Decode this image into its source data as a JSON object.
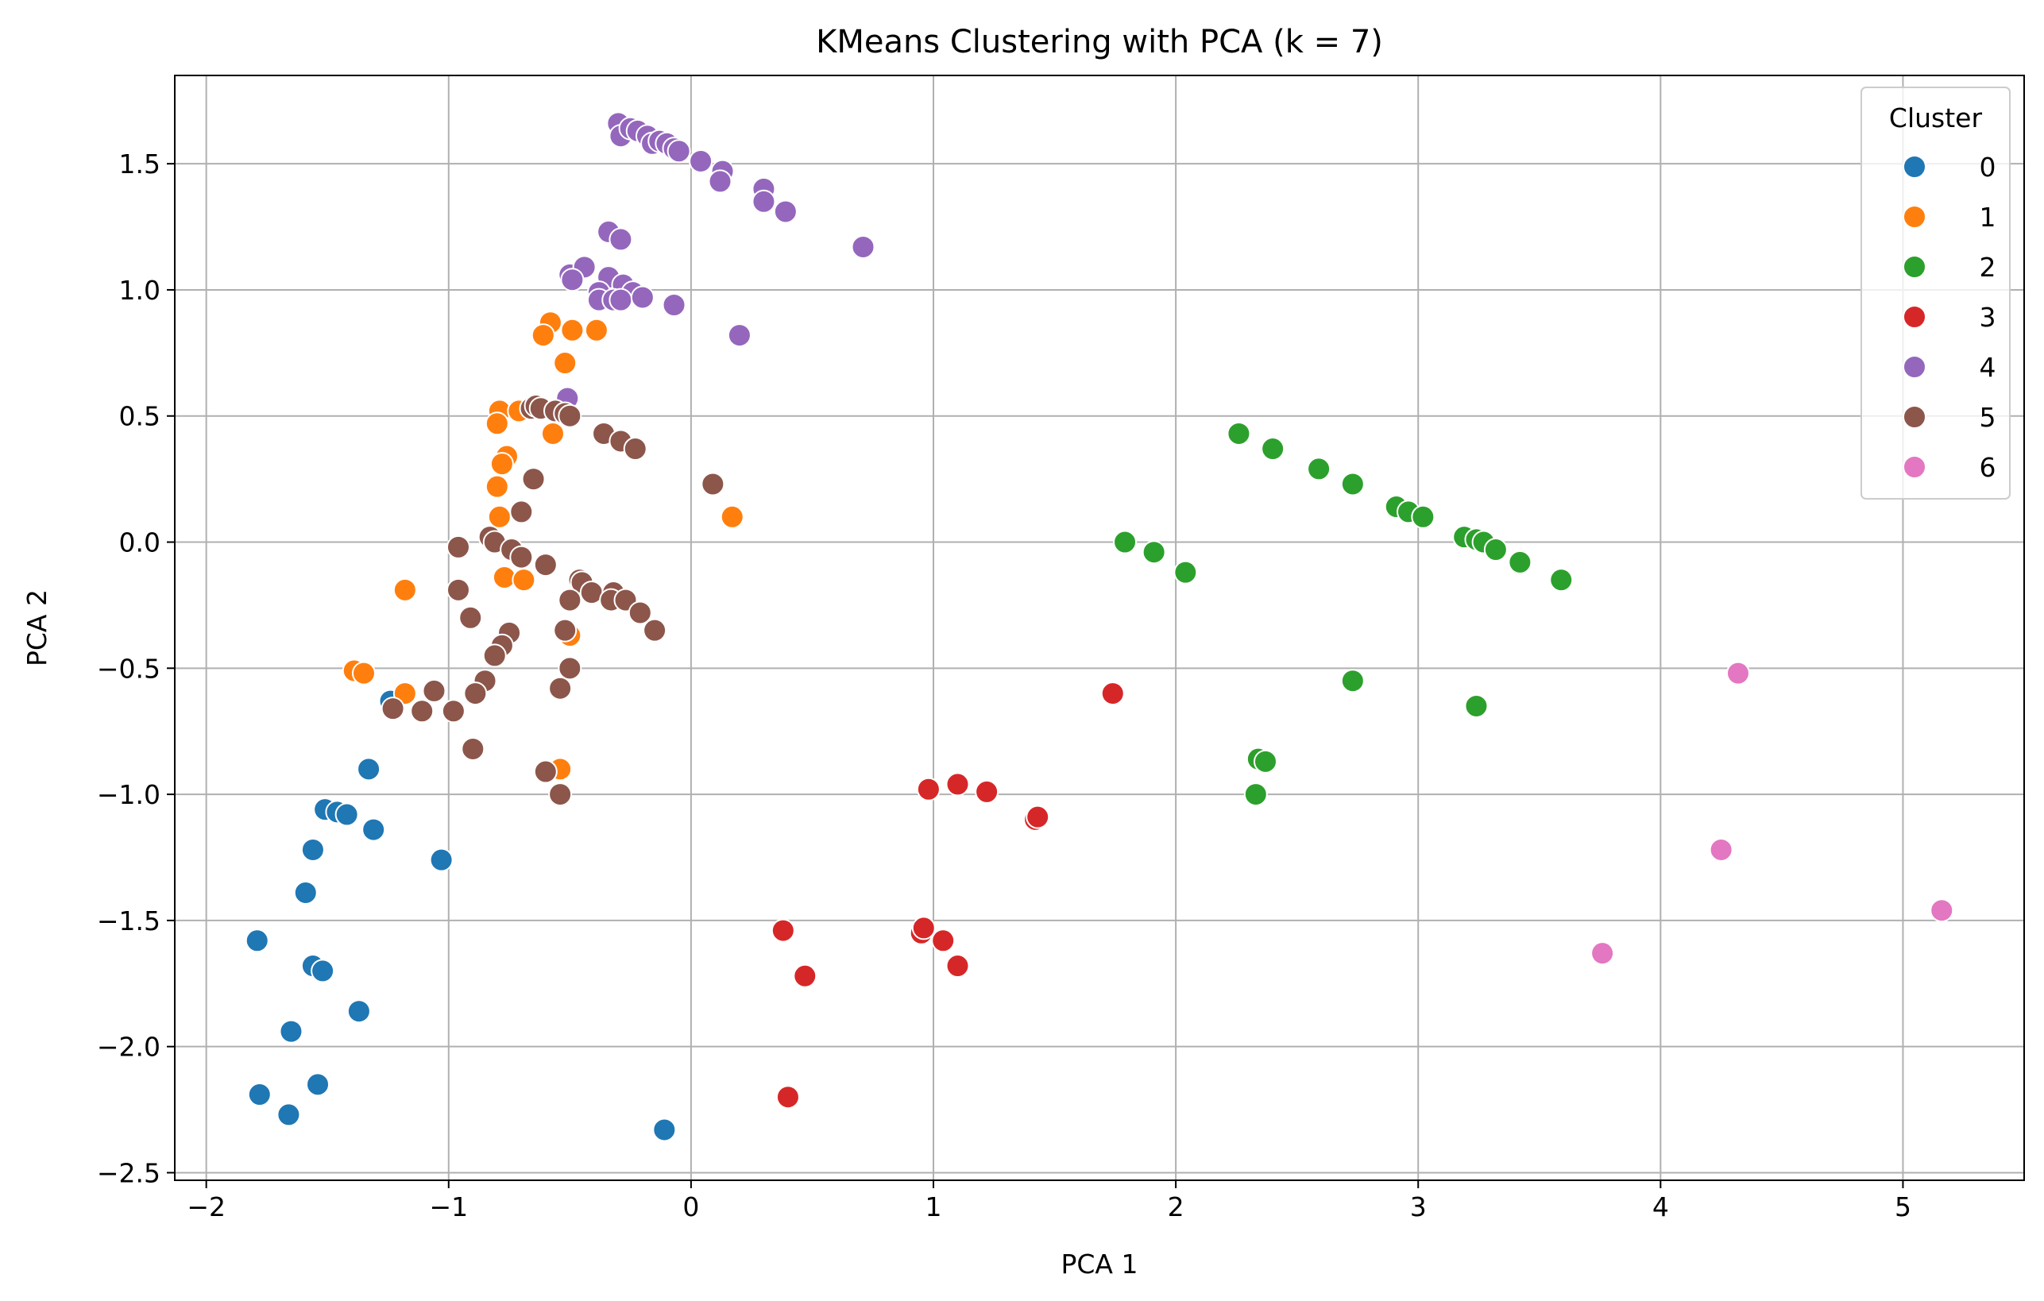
{
  "chart_data": {
    "type": "scatter",
    "title": "KMeans Clustering with PCA (k = 7)",
    "xlabel": "PCA 1",
    "ylabel": "PCA 2",
    "xlim": [
      -2.13,
      5.5
    ],
    "ylim": [
      -2.53,
      1.85
    ],
    "xticks": [
      -2,
      -1,
      0,
      1,
      2,
      3,
      4,
      5
    ],
    "xtick_labels": [
      "−2",
      "−1",
      "0",
      "1",
      "2",
      "3",
      "4",
      "5"
    ],
    "yticks": [
      -2.5,
      -2.0,
      -1.5,
      -1.0,
      -0.5,
      0.0,
      0.5,
      1.0,
      1.5
    ],
    "ytick_labels": [
      "−2.5",
      "−2.0",
      "−1.5",
      "−1.0",
      "−0.5",
      "0.0",
      "0.5",
      "1.0",
      "1.5"
    ],
    "grid": true,
    "legend": {
      "title": "Cluster",
      "placement": "top-right"
    },
    "series": [
      {
        "name": "0",
        "color": "#1f77b4",
        "points": [
          [
            -1.24,
            -0.63
          ],
          [
            -1.33,
            -0.9
          ],
          [
            -1.51,
            -1.06
          ],
          [
            -1.46,
            -1.07
          ],
          [
            -1.42,
            -1.08
          ],
          [
            -1.31,
            -1.14
          ],
          [
            -1.56,
            -1.22
          ],
          [
            -1.03,
            -1.26
          ],
          [
            -1.59,
            -1.39
          ],
          [
            -1.79,
            -1.58
          ],
          [
            -1.56,
            -1.68
          ],
          [
            -1.52,
            -1.7
          ],
          [
            -1.37,
            -1.86
          ],
          [
            -1.65,
            -1.94
          ],
          [
            -1.78,
            -2.19
          ],
          [
            -1.54,
            -2.15
          ],
          [
            -1.66,
            -2.27
          ],
          [
            -0.11,
            -2.33
          ]
        ]
      },
      {
        "name": "1",
        "color": "#ff7f0e",
        "points": [
          [
            -0.58,
            0.87
          ],
          [
            -0.61,
            0.82
          ],
          [
            -0.49,
            0.84
          ],
          [
            -0.39,
            0.84
          ],
          [
            -0.52,
            0.71
          ],
          [
            -0.79,
            0.52
          ],
          [
            -0.71,
            0.52
          ],
          [
            -0.8,
            0.47
          ],
          [
            -0.57,
            0.43
          ],
          [
            -0.76,
            0.34
          ],
          [
            -0.78,
            0.31
          ],
          [
            -0.8,
            0.22
          ],
          [
            -0.79,
            0.1
          ],
          [
            0.17,
            0.1
          ],
          [
            -0.77,
            -0.14
          ],
          [
            -0.69,
            -0.15
          ],
          [
            -1.18,
            -0.19
          ],
          [
            -0.5,
            -0.37
          ],
          [
            -1.39,
            -0.51
          ],
          [
            -1.35,
            -0.52
          ],
          [
            -1.18,
            -0.6
          ],
          [
            -0.54,
            -0.9
          ]
        ]
      },
      {
        "name": "2",
        "color": "#2ca02c",
        "points": [
          [
            2.26,
            0.43
          ],
          [
            2.4,
            0.37
          ],
          [
            2.59,
            0.29
          ],
          [
            2.73,
            0.23
          ],
          [
            2.91,
            0.14
          ],
          [
            2.96,
            0.12
          ],
          [
            3.02,
            0.1
          ],
          [
            3.19,
            0.02
          ],
          [
            3.24,
            0.01
          ],
          [
            3.27,
            0.0
          ],
          [
            3.32,
            -0.03
          ],
          [
            3.42,
            -0.08
          ],
          [
            3.59,
            -0.15
          ],
          [
            1.79,
            0.0
          ],
          [
            1.91,
            -0.04
          ],
          [
            2.04,
            -0.12
          ],
          [
            2.73,
            -0.55
          ],
          [
            3.24,
            -0.65
          ],
          [
            2.34,
            -0.86
          ],
          [
            2.37,
            -0.87
          ],
          [
            2.33,
            -1.0
          ]
        ]
      },
      {
        "name": "3",
        "color": "#d62728",
        "points": [
          [
            1.74,
            -0.6
          ],
          [
            0.98,
            -0.98
          ],
          [
            1.1,
            -0.96
          ],
          [
            1.22,
            -0.99
          ],
          [
            1.42,
            -1.1
          ],
          [
            1.43,
            -1.09
          ],
          [
            0.38,
            -1.54
          ],
          [
            0.95,
            -1.55
          ],
          [
            0.96,
            -1.53
          ],
          [
            1.04,
            -1.58
          ],
          [
            1.1,
            -1.68
          ],
          [
            0.47,
            -1.72
          ],
          [
            0.4,
            -2.2
          ]
        ]
      },
      {
        "name": "4",
        "color": "#9467bd",
        "points": [
          [
            -0.3,
            1.66
          ],
          [
            -0.29,
            1.61
          ],
          [
            -0.25,
            1.64
          ],
          [
            -0.22,
            1.63
          ],
          [
            -0.18,
            1.61
          ],
          [
            -0.16,
            1.58
          ],
          [
            -0.13,
            1.59
          ],
          [
            -0.1,
            1.58
          ],
          [
            -0.07,
            1.56
          ],
          [
            -0.05,
            1.55
          ],
          [
            0.04,
            1.51
          ],
          [
            0.13,
            1.47
          ],
          [
            0.12,
            1.43
          ],
          [
            0.3,
            1.4
          ],
          [
            0.3,
            1.35
          ],
          [
            0.39,
            1.31
          ],
          [
            0.71,
            1.17
          ],
          [
            -0.34,
            1.23
          ],
          [
            -0.29,
            1.2
          ],
          [
            -0.5,
            1.06
          ],
          [
            -0.44,
            1.09
          ],
          [
            -0.49,
            1.04
          ],
          [
            -0.34,
            1.05
          ],
          [
            -0.28,
            1.02
          ],
          [
            -0.24,
            0.99
          ],
          [
            -0.38,
            0.99
          ],
          [
            -0.38,
            0.96
          ],
          [
            -0.32,
            0.96
          ],
          [
            -0.29,
            0.96
          ],
          [
            -0.2,
            0.97
          ],
          [
            -0.07,
            0.94
          ],
          [
            0.2,
            0.82
          ],
          [
            -0.51,
            0.57
          ]
        ]
      },
      {
        "name": "5",
        "color": "#8c564b",
        "points": [
          [
            -0.66,
            0.53
          ],
          [
            -0.64,
            0.54
          ],
          [
            -0.62,
            0.53
          ],
          [
            -0.56,
            0.52
          ],
          [
            -0.52,
            0.51
          ],
          [
            -0.5,
            0.5
          ],
          [
            -0.36,
            0.43
          ],
          [
            -0.29,
            0.4
          ],
          [
            -0.23,
            0.37
          ],
          [
            -0.65,
            0.25
          ],
          [
            0.09,
            0.23
          ],
          [
            -0.7,
            0.12
          ],
          [
            -0.83,
            0.02
          ],
          [
            -0.81,
            0.0
          ],
          [
            -0.96,
            -0.02
          ],
          [
            -0.74,
            -0.03
          ],
          [
            -0.7,
            -0.06
          ],
          [
            -0.6,
            -0.09
          ],
          [
            -0.46,
            -0.15
          ],
          [
            -0.45,
            -0.16
          ],
          [
            -0.41,
            -0.2
          ],
          [
            -0.32,
            -0.2
          ],
          [
            -0.96,
            -0.19
          ],
          [
            -0.5,
            -0.23
          ],
          [
            -0.33,
            -0.23
          ],
          [
            -0.27,
            -0.23
          ],
          [
            -0.21,
            -0.28
          ],
          [
            -0.91,
            -0.3
          ],
          [
            -0.15,
            -0.35
          ],
          [
            -0.52,
            -0.35
          ],
          [
            -0.75,
            -0.36
          ],
          [
            -0.78,
            -0.41
          ],
          [
            -0.81,
            -0.45
          ],
          [
            -0.5,
            -0.5
          ],
          [
            -0.85,
            -0.55
          ],
          [
            -0.89,
            -0.6
          ],
          [
            -0.54,
            -0.58
          ],
          [
            -1.06,
            -0.59
          ],
          [
            -1.23,
            -0.66
          ],
          [
            -1.11,
            -0.67
          ],
          [
            -0.98,
            -0.67
          ],
          [
            -0.9,
            -0.82
          ],
          [
            -0.6,
            -0.91
          ],
          [
            -0.54,
            -1.0
          ]
        ]
      },
      {
        "name": "6",
        "color": "#e377c2",
        "points": [
          [
            4.32,
            -0.52
          ],
          [
            4.25,
            -1.22
          ],
          [
            3.76,
            -1.63
          ],
          [
            5.16,
            -1.46
          ]
        ]
      }
    ]
  }
}
